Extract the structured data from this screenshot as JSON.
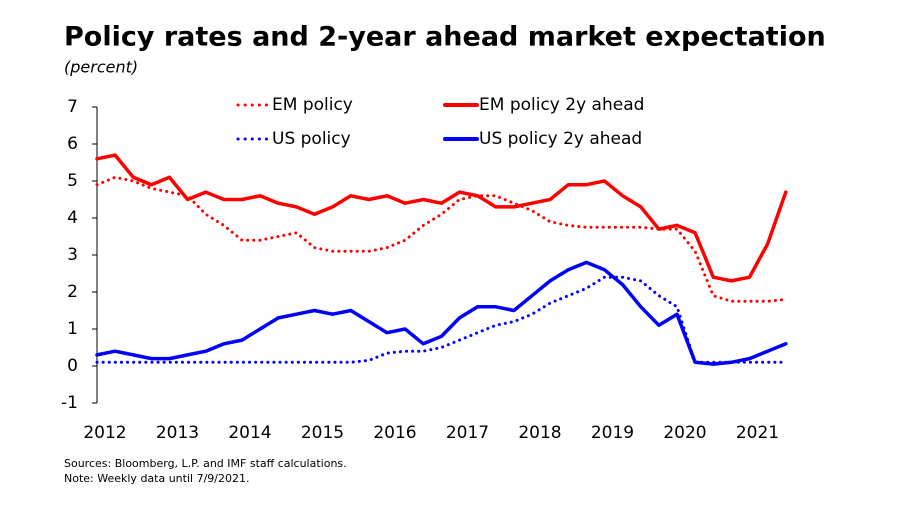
{
  "chart_data": {
    "type": "line",
    "title": "Policy rates and 2-year ahead market expectation",
    "subtitle": "(percent)",
    "notes": [
      "Sources: Bloomberg, L.P. and IMF staff calculations.",
      "Note: Weekly data until 7/9/2021."
    ],
    "x": [
      2012,
      2012.25,
      2012.5,
      2012.75,
      2013,
      2013.25,
      2013.5,
      2013.75,
      2014,
      2014.25,
      2014.5,
      2014.75,
      2015,
      2015.25,
      2015.5,
      2015.75,
      2016,
      2016.25,
      2016.5,
      2016.75,
      2017,
      2017.25,
      2017.5,
      2017.75,
      2018,
      2018.25,
      2018.5,
      2018.75,
      2019,
      2019.25,
      2019.5,
      2019.75,
      2020,
      2020.25,
      2020.5,
      2020.75,
      2021,
      2021.25,
      2021.5
    ],
    "xlim": [
      2012,
      2021.6
    ],
    "xticks": [
      2012,
      2013,
      2014,
      2015,
      2016,
      2017,
      2018,
      2019,
      2020,
      2021
    ],
    "ylim": [
      -1,
      7
    ],
    "yticks": [
      -1,
      0,
      1,
      2,
      3,
      4,
      5,
      6,
      7
    ],
    "series": [
      {
        "name": "EM policy",
        "color": "#ff0000",
        "style": "dotted",
        "values": [
          4.9,
          5.1,
          5.0,
          4.8,
          4.7,
          4.6,
          4.1,
          3.8,
          3.4,
          3.4,
          3.5,
          3.6,
          3.2,
          3.1,
          3.1,
          3.1,
          3.2,
          3.4,
          3.8,
          4.1,
          4.5,
          4.6,
          4.6,
          4.4,
          4.2,
          3.9,
          3.8,
          3.75,
          3.75,
          3.75,
          3.75,
          3.7,
          3.7,
          3.1,
          1.9,
          1.75,
          1.75,
          1.75,
          1.8
        ]
      },
      {
        "name": "EM policy 2y ahead",
        "color": "#ff0000",
        "style": "solid",
        "values": [
          5.6,
          5.7,
          5.1,
          4.9,
          5.1,
          4.5,
          4.7,
          4.5,
          4.5,
          4.6,
          4.4,
          4.3,
          4.1,
          4.3,
          4.6,
          4.5,
          4.6,
          4.4,
          4.5,
          4.4,
          4.7,
          4.6,
          4.3,
          4.3,
          4.4,
          4.5,
          4.9,
          4.9,
          5.0,
          4.6,
          4.3,
          3.7,
          3.8,
          3.6,
          2.4,
          2.3,
          2.4,
          3.3,
          4.7
        ]
      },
      {
        "name": "US policy",
        "color": "#0000ff",
        "style": "dotted",
        "values": [
          0.1,
          0.1,
          0.1,
          0.1,
          0.1,
          0.1,
          0.1,
          0.1,
          0.1,
          0.1,
          0.1,
          0.1,
          0.1,
          0.1,
          0.1,
          0.15,
          0.35,
          0.4,
          0.4,
          0.5,
          0.7,
          0.9,
          1.1,
          1.2,
          1.4,
          1.7,
          1.9,
          2.1,
          2.4,
          2.4,
          2.3,
          1.9,
          1.6,
          0.1,
          0.1,
          0.1,
          0.1,
          0.1,
          0.1
        ]
      },
      {
        "name": "US policy 2y ahead",
        "color": "#0000ff",
        "style": "solid",
        "values": [
          0.3,
          0.4,
          0.3,
          0.2,
          0.2,
          0.3,
          0.4,
          0.6,
          0.7,
          1.0,
          1.3,
          1.4,
          1.5,
          1.4,
          1.5,
          1.2,
          0.9,
          1.0,
          0.6,
          0.8,
          1.3,
          1.6,
          1.6,
          1.5,
          1.9,
          2.3,
          2.6,
          2.8,
          2.6,
          2.2,
          1.6,
          1.1,
          1.4,
          0.1,
          0.05,
          0.1,
          0.2,
          0.4,
          0.6
        ]
      }
    ]
  }
}
